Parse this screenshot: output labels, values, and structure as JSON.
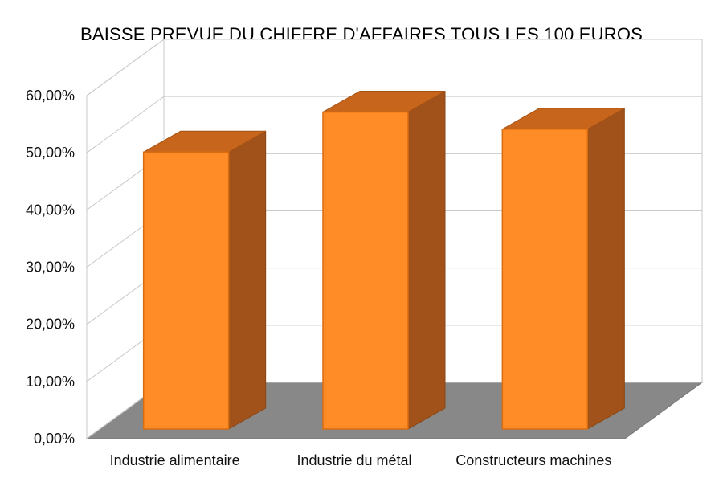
{
  "chart_data": {
    "type": "bar",
    "title": "BAISSE PREVUE DU CHIFFRE D'AFFAIRES TOUS LES 100 EUROS",
    "xlabel": "",
    "ylabel": "",
    "categories": [
      "Industrie alimentaire",
      "Industrie du métal",
      "Constructeurs machines"
    ],
    "values": [
      0.49,
      0.56,
      0.53
    ],
    "ylim": [
      0,
      0.6
    ],
    "yticks": [
      0,
      0.1,
      0.2,
      0.3,
      0.4,
      0.5,
      0.6
    ],
    "ytick_labels": [
      "0,00%",
      "10,00%",
      "20,00%",
      "30,00%",
      "40,00%",
      "50,00%",
      "60,00%"
    ],
    "grid": true,
    "legend": "none",
    "style": "3d",
    "colors": {
      "bar_front": "#ff8c26",
      "bar_side": "#a0521a",
      "bar_top": "#c8651c",
      "floor": "#888888"
    }
  }
}
